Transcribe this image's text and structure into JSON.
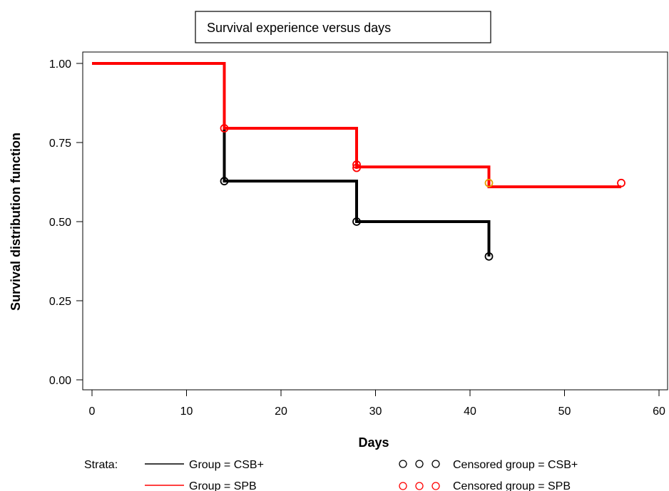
{
  "chart_data": {
    "type": "line",
    "step": true,
    "title": "Survival experience versus days",
    "xlabel": "Days",
    "ylabel": "Survival distribution function",
    "xlim": [
      0,
      60
    ],
    "ylim": [
      0,
      1
    ],
    "xticks": [
      0,
      10,
      20,
      30,
      40,
      50,
      60
    ],
    "xtick_labels": [
      "0",
      "10",
      "20",
      "30",
      "40",
      "50",
      "60"
    ],
    "yticks": [
      0,
      0.25,
      0.5,
      0.75,
      1
    ],
    "ytick_labels": [
      "0.00",
      "0.25",
      "0.50",
      "0.75",
      "1.00"
    ],
    "grid": false,
    "legend_prefix": "Strata:",
    "series": [
      {
        "name": "Group = CSB+",
        "censored_name": "Censored group = CSB+",
        "color": "#000000",
        "x": [
          0,
          14,
          28,
          42
        ],
        "y": [
          1.0,
          0.628,
          0.5,
          0.39
        ],
        "censored": [
          [
            14,
            0.628
          ],
          [
            28,
            0.5
          ],
          [
            42,
            0.39
          ]
        ]
      },
      {
        "name": "Group = SPB",
        "censored_name": "Censored group = SPB",
        "color": "#ff0000",
        "x": [
          0,
          14,
          28,
          42,
          56
        ],
        "y": [
          1.0,
          0.795,
          0.673,
          0.61,
          0.61
        ],
        "censored": [
          [
            14,
            0.795
          ],
          [
            28,
            0.68
          ],
          [
            28,
            0.67
          ],
          [
            42,
            0.622
          ],
          [
            56,
            0.622
          ]
        ]
      }
    ],
    "censored_marker_color_overrides": [
      {
        "series": 1,
        "index": 3,
        "stroke": "#e6a000"
      }
    ]
  }
}
